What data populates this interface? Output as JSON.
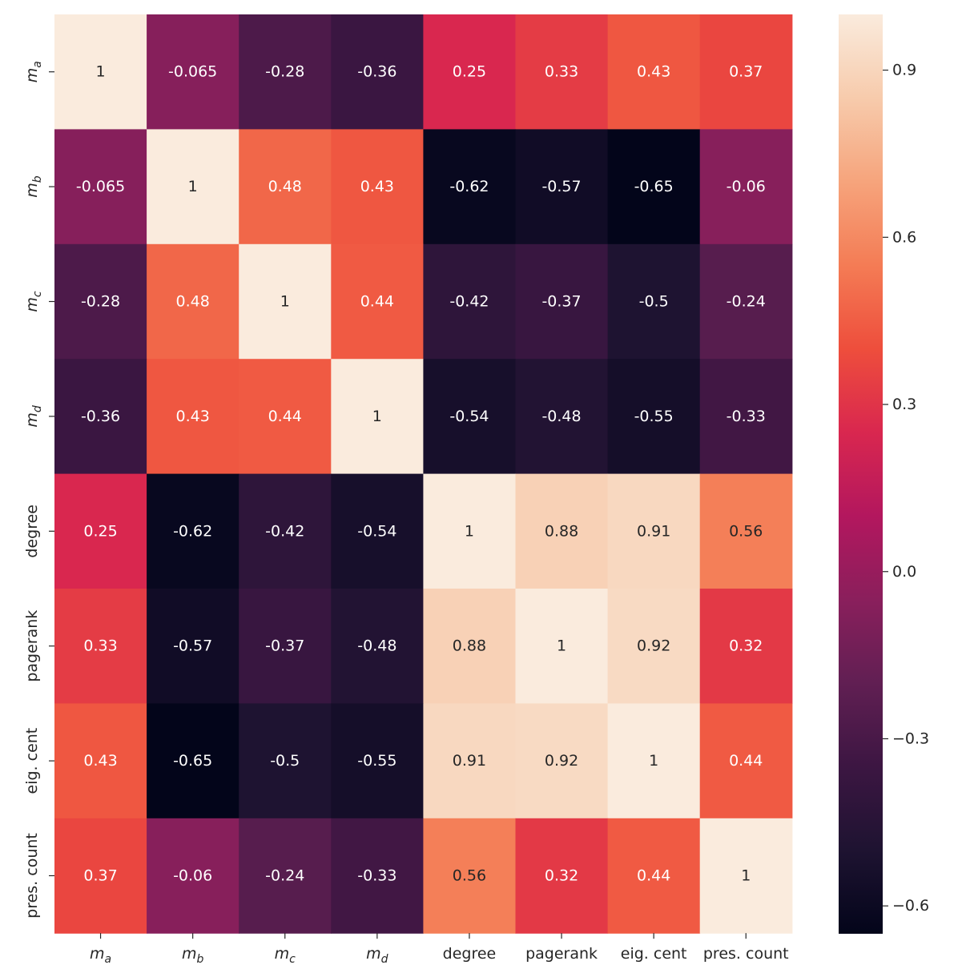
{
  "chart_data": {
    "type": "heatmap",
    "title": "",
    "xlabel": "",
    "ylabel": "",
    "rows": [
      {
        "label": "m_a",
        "base": "m",
        "sub": "a"
      },
      {
        "label": "m_b",
        "base": "m",
        "sub": "b"
      },
      {
        "label": "m_c",
        "base": "m",
        "sub": "c"
      },
      {
        "label": "m_d",
        "base": "m",
        "sub": "d"
      },
      {
        "label": "degree"
      },
      {
        "label": "pagerank"
      },
      {
        "label": "eig. cent"
      },
      {
        "label": "pres. count"
      }
    ],
    "columns": [
      {
        "label": "m_a",
        "base": "m",
        "sub": "a"
      },
      {
        "label": "m_b",
        "base": "m",
        "sub": "b"
      },
      {
        "label": "m_c",
        "base": "m",
        "sub": "c"
      },
      {
        "label": "m_d",
        "base": "m",
        "sub": "d"
      },
      {
        "label": "degree"
      },
      {
        "label": "pagerank"
      },
      {
        "label": "eig. cent"
      },
      {
        "label": "pres. count"
      }
    ],
    "values": [
      [
        1,
        -0.065,
        -0.28,
        -0.36,
        0.25,
        0.33,
        0.43,
        0.37
      ],
      [
        -0.065,
        1,
        0.48,
        0.43,
        -0.62,
        -0.57,
        -0.65,
        -0.06
      ],
      [
        -0.28,
        0.48,
        1,
        0.44,
        -0.42,
        -0.37,
        -0.5,
        -0.24
      ],
      [
        -0.36,
        0.43,
        0.44,
        1,
        -0.54,
        -0.48,
        -0.55,
        -0.33
      ],
      [
        0.25,
        -0.62,
        -0.42,
        -0.54,
        1,
        0.88,
        0.91,
        0.56
      ],
      [
        0.33,
        -0.57,
        -0.37,
        -0.48,
        0.88,
        1,
        0.92,
        0.32
      ],
      [
        0.43,
        -0.65,
        -0.5,
        -0.55,
        0.91,
        0.92,
        1,
        0.44
      ],
      [
        0.37,
        -0.06,
        -0.24,
        -0.33,
        0.56,
        0.32,
        0.44,
        1
      ]
    ],
    "cell_labels": [
      [
        "1",
        "-0.065",
        "-0.28",
        "-0.36",
        "0.25",
        "0.33",
        "0.43",
        "0.37"
      ],
      [
        "-0.065",
        "1",
        "0.48",
        "0.43",
        "-0.62",
        "-0.57",
        "-0.65",
        "-0.06"
      ],
      [
        "-0.28",
        "0.48",
        "1",
        "0.44",
        "-0.42",
        "-0.37",
        "-0.5",
        "-0.24"
      ],
      [
        "-0.36",
        "0.43",
        "0.44",
        "1",
        "-0.54",
        "-0.48",
        "-0.55",
        "-0.33"
      ],
      [
        "0.25",
        "-0.62",
        "-0.42",
        "-0.54",
        "1",
        "0.88",
        "0.91",
        "0.56"
      ],
      [
        "0.33",
        "-0.57",
        "-0.37",
        "-0.48",
        "0.88",
        "1",
        "0.92",
        "0.32"
      ],
      [
        "0.43",
        "-0.65",
        "-0.5",
        "-0.55",
        "0.91",
        "0.92",
        "1",
        "0.44"
      ],
      [
        "0.37",
        "-0.06",
        "-0.24",
        "-0.33",
        "0.56",
        "0.32",
        "0.44",
        "1"
      ]
    ],
    "colorbar": {
      "vmin": -0.65,
      "vmax": 1,
      "ticks": [
        0.9,
        0.6,
        0.3,
        0.0,
        -0.3,
        -0.6
      ],
      "tick_labels": [
        "0.9",
        "0.6",
        "0.3",
        "0.0",
        "−0.3",
        "−0.6"
      ],
      "colormap": "rocket",
      "stops": [
        "#03051a",
        "#1e1331",
        "#3c1642",
        "#611f53",
        "#8a1f5c",
        "#b3175e",
        "#d9274f",
        "#ee4e3c",
        "#f47c55",
        "#f6a47c",
        "#f7cbac",
        "#faebdd"
      ]
    }
  }
}
